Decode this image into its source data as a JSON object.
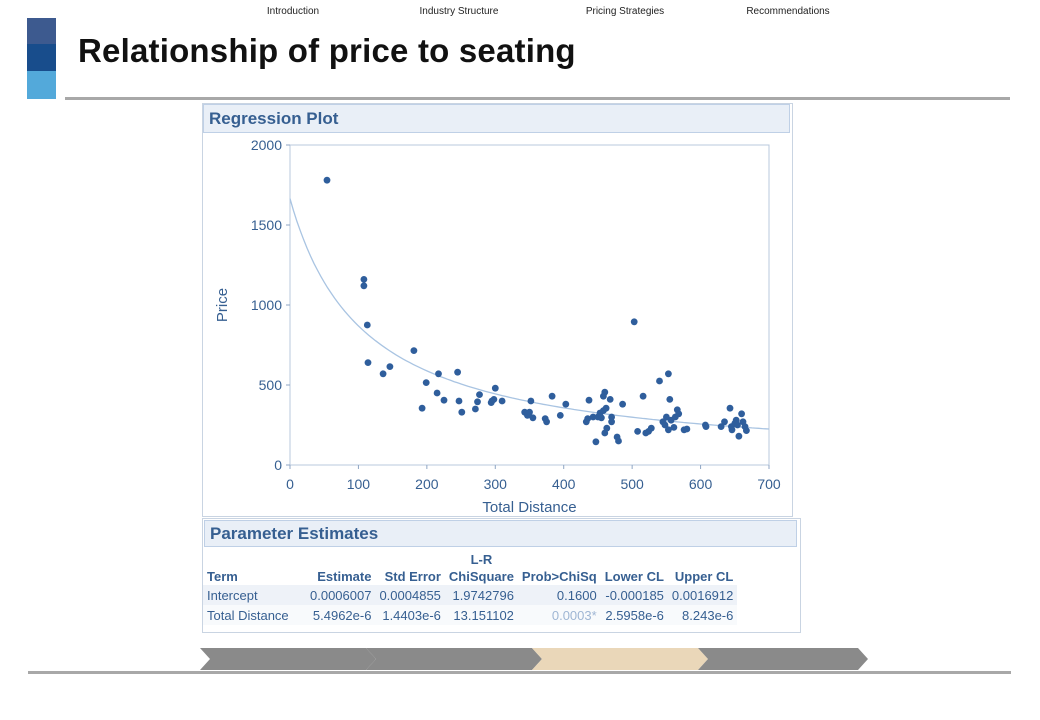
{
  "slide": {
    "title": "Relationship of price to seating",
    "accent_colors": [
      "#3d5a8f",
      "#184d8c",
      "#53a9da"
    ]
  },
  "regression_panel": {
    "header": "Regression Plot"
  },
  "chart_data": {
    "type": "scatter",
    "title": "",
    "xlabel": "Total Distance",
    "ylabel": "Price",
    "xlim": [
      0,
      700
    ],
    "ylim": [
      0,
      2000
    ],
    "xticks": [
      0,
      100,
      200,
      300,
      400,
      500,
      600,
      700
    ],
    "yticks": [
      0,
      500,
      1000,
      1500,
      2000
    ],
    "grid": false,
    "point_color": "#2f5e9c",
    "curve_color": "#a9c4e2",
    "fit": {
      "model": "reciprocal",
      "intercept": 0.0006007,
      "slope": 5.4962e-06
    },
    "points": [
      [
        54,
        1780
      ],
      [
        108,
        1160
      ],
      [
        108,
        1120
      ],
      [
        113,
        875
      ],
      [
        114,
        640
      ],
      [
        136,
        570
      ],
      [
        146,
        615
      ],
      [
        181,
        715
      ],
      [
        193,
        355
      ],
      [
        199,
        515
      ],
      [
        215,
        450
      ],
      [
        217,
        570
      ],
      [
        225,
        405
      ],
      [
        245,
        580
      ],
      [
        247,
        400
      ],
      [
        251,
        330
      ],
      [
        271,
        350
      ],
      [
        274,
        395
      ],
      [
        277,
        440
      ],
      [
        294,
        390
      ],
      [
        295,
        400
      ],
      [
        298,
        410
      ],
      [
        300,
        480
      ],
      [
        310,
        400
      ],
      [
        343,
        330
      ],
      [
        347,
        310
      ],
      [
        350,
        330
      ],
      [
        352,
        400
      ],
      [
        355,
        295
      ],
      [
        373,
        290
      ],
      [
        375,
        270
      ],
      [
        383,
        430
      ],
      [
        395,
        310
      ],
      [
        403,
        380
      ],
      [
        433,
        270
      ],
      [
        435,
        290
      ],
      [
        437,
        405
      ],
      [
        443,
        300
      ],
      [
        447,
        145
      ],
      [
        450,
        300
      ],
      [
        453,
        325
      ],
      [
        455,
        295
      ],
      [
        458,
        340
      ],
      [
        458,
        430
      ],
      [
        460,
        200
      ],
      [
        460,
        455
      ],
      [
        462,
        355
      ],
      [
        463,
        230
      ],
      [
        468,
        410
      ],
      [
        470,
        270
      ],
      [
        470,
        300
      ],
      [
        478,
        175
      ],
      [
        480,
        150
      ],
      [
        486,
        380
      ],
      [
        503,
        895
      ],
      [
        508,
        210
      ],
      [
        516,
        430
      ],
      [
        520,
        200
      ],
      [
        524,
        210
      ],
      [
        528,
        230
      ],
      [
        540,
        525
      ],
      [
        545,
        270
      ],
      [
        548,
        250
      ],
      [
        550,
        300
      ],
      [
        553,
        220
      ],
      [
        553,
        570
      ],
      [
        555,
        410
      ],
      [
        557,
        280
      ],
      [
        561,
        235
      ],
      [
        563,
        300
      ],
      [
        566,
        345
      ],
      [
        568,
        320
      ],
      [
        576,
        220
      ],
      [
        580,
        225
      ],
      [
        607,
        250
      ],
      [
        608,
        240
      ],
      [
        630,
        240
      ],
      [
        635,
        270
      ],
      [
        643,
        355
      ],
      [
        645,
        240
      ],
      [
        646,
        220
      ],
      [
        650,
        260
      ],
      [
        652,
        280
      ],
      [
        654,
        250
      ],
      [
        656,
        180
      ],
      [
        660,
        320
      ],
      [
        662,
        270
      ],
      [
        665,
        240
      ],
      [
        667,
        215
      ]
    ]
  },
  "parameter_estimates": {
    "header": "Parameter Estimates",
    "columns": [
      {
        "top": "",
        "label": "Term"
      },
      {
        "top": "",
        "label": "Estimate"
      },
      {
        "top": "",
        "label": "Std Error"
      },
      {
        "top": "L-R",
        "label": "ChiSquare"
      },
      {
        "top": "",
        "label": "Prob>ChiSq"
      },
      {
        "top": "",
        "label": "Lower CL"
      },
      {
        "top": "",
        "label": "Upper CL"
      }
    ],
    "rows": [
      [
        "Intercept",
        "0.0006007",
        "0.0004855",
        "1.9742796",
        "0.1600",
        "-0.000185",
        "0.0016912"
      ],
      [
        "Total Distance",
        "5.4962e-6",
        "1.4403e-6",
        "13.151102",
        "0.0003*",
        "2.5958e-6",
        "8.243e-6"
      ]
    ]
  },
  "nav": {
    "items": [
      {
        "label": "Introduction",
        "color": "#8a8a8a"
      },
      {
        "label": "Industry Structure",
        "color": "#8a8a8a"
      },
      {
        "label": "Pricing Strategies",
        "color": "#ead7b9"
      },
      {
        "label": "Recommendations",
        "color": "#8a8a8a"
      }
    ]
  }
}
